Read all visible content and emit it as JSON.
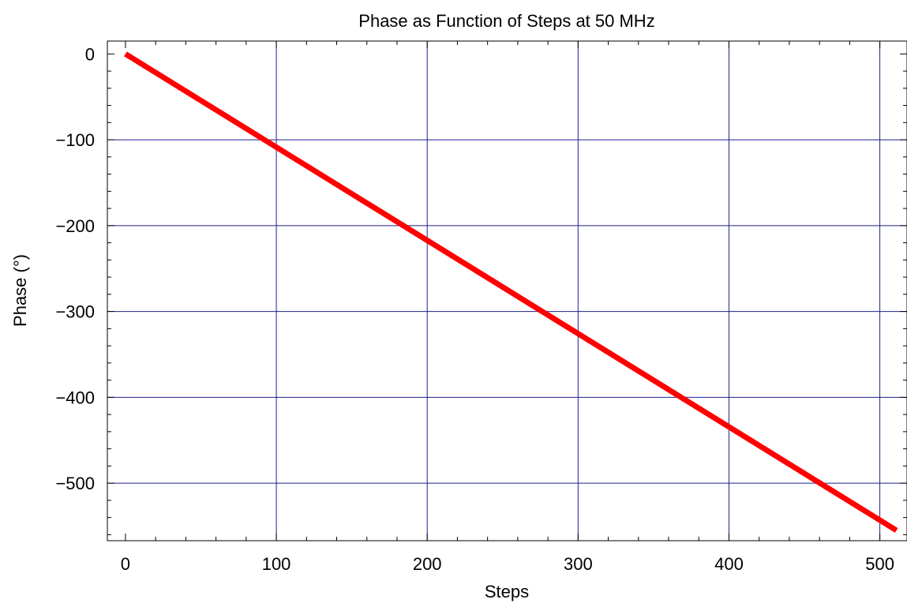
{
  "chart_data": {
    "type": "line",
    "title": "Phase as Function of Steps at 50 MHz",
    "xlabel": "Steps",
    "ylabel": "Phase (°)",
    "xlim": [
      -12,
      518
    ],
    "ylim": [
      -567,
      15
    ],
    "x_ticks": [
      0,
      100,
      200,
      300,
      400,
      500
    ],
    "x_tick_labels": [
      "0",
      "100",
      "200",
      "300",
      "400",
      "500"
    ],
    "y_ticks": [
      0,
      -100,
      -200,
      -300,
      -400,
      -500
    ],
    "y_tick_labels": [
      "0",
      "−100",
      "−200",
      "−300",
      "−400",
      "−500"
    ],
    "grid": true,
    "grid_color": "#1f1f8f",
    "series": [
      {
        "color": "#ff0000",
        "x": [
          0,
          511
        ],
        "values": [
          0,
          -555
        ]
      }
    ]
  }
}
